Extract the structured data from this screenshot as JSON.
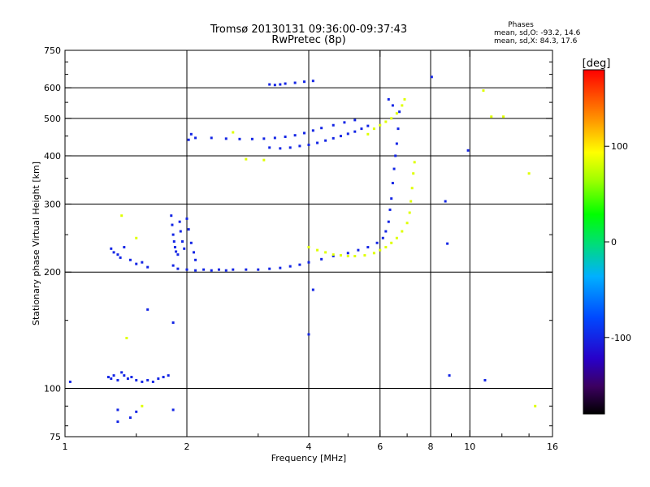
{
  "chart_data": {
    "type": "scatter",
    "title": "Tromsø 20130131 09:36:00-09:37:43",
    "subtitle": "RwPretec (8p)",
    "xlabel": "Frequency [MHz]",
    "ylabel": "Stationary phase Virtual Height [km]",
    "x_scale": "log",
    "y_scale": "log",
    "xlim": [
      1,
      16
    ],
    "ylim": [
      75,
      750
    ],
    "x_ticks": [
      "1",
      "2",
      "4",
      "6",
      "8",
      "10",
      "16"
    ],
    "x_tick_values": [
      1,
      2,
      4,
      6,
      8,
      10,
      16
    ],
    "x_grid": [
      2,
      4,
      6,
      8,
      10
    ],
    "y_ticks": [
      "750",
      "600",
      "500",
      "400",
      "300",
      "200",
      "100",
      "75"
    ],
    "y_tick_values": [
      750,
      600,
      500,
      400,
      300,
      200,
      100,
      75
    ],
    "y_grid": [
      600,
      500,
      400,
      300,
      200,
      100
    ],
    "grid": true,
    "stats": {
      "heading": "Phases",
      "line1": "mean, sd,O: -93.2, 14.6",
      "line2": "mean, sd,X:  84.3, 17.6"
    },
    "colorbar": {
      "label": "[deg]",
      "range": [
        -180,
        180
      ],
      "ticks": [
        "100",
        "0",
        "-100"
      ],
      "tick_values": [
        100,
        0,
        -100
      ]
    },
    "series": [
      {
        "name": "O",
        "color_phase": -100,
        "points": [
          [
            1.03,
            104
          ],
          [
            1.28,
            107
          ],
          [
            1.3,
            106
          ],
          [
            1.32,
            108
          ],
          [
            1.35,
            105
          ],
          [
            1.38,
            110
          ],
          [
            1.4,
            108
          ],
          [
            1.43,
            106
          ],
          [
            1.46,
            107
          ],
          [
            1.5,
            105
          ],
          [
            1.55,
            104
          ],
          [
            1.6,
            105
          ],
          [
            1.65,
            104
          ],
          [
            1.7,
            106
          ],
          [
            1.75,
            107
          ],
          [
            1.8,
            108
          ],
          [
            1.3,
            230
          ],
          [
            1.32,
            225
          ],
          [
            1.35,
            222
          ],
          [
            1.37,
            218
          ],
          [
            1.4,
            232
          ],
          [
            1.45,
            215
          ],
          [
            1.5,
            210
          ],
          [
            1.55,
            212
          ],
          [
            1.6,
            206
          ],
          [
            1.83,
            280
          ],
          [
            1.84,
            265
          ],
          [
            1.85,
            250
          ],
          [
            1.86,
            240
          ],
          [
            1.87,
            232
          ],
          [
            1.88,
            226
          ],
          [
            1.9,
            222
          ],
          [
            1.92,
            270
          ],
          [
            1.93,
            255
          ],
          [
            1.95,
            240
          ],
          [
            1.97,
            230
          ],
          [
            2.0,
            275
          ],
          [
            2.02,
            258
          ],
          [
            2.05,
            238
          ],
          [
            2.08,
            225
          ],
          [
            2.1,
            215
          ],
          [
            1.85,
            208
          ],
          [
            1.9,
            204
          ],
          [
            2.0,
            203
          ],
          [
            2.1,
            202
          ],
          [
            2.2,
            203
          ],
          [
            2.3,
            202
          ],
          [
            2.4,
            203
          ],
          [
            2.5,
            202
          ],
          [
            2.6,
            203
          ],
          [
            2.8,
            203
          ],
          [
            3.0,
            203
          ],
          [
            3.2,
            204
          ],
          [
            3.4,
            205
          ],
          [
            3.6,
            207
          ],
          [
            3.8,
            209
          ],
          [
            4.0,
            212
          ],
          [
            4.3,
            216
          ],
          [
            4.6,
            220
          ],
          [
            5.0,
            224
          ],
          [
            5.3,
            228
          ],
          [
            5.6,
            232
          ],
          [
            5.9,
            238
          ],
          [
            6.1,
            245
          ],
          [
            6.2,
            255
          ],
          [
            6.3,
            270
          ],
          [
            6.35,
            290
          ],
          [
            6.4,
            310
          ],
          [
            6.45,
            340
          ],
          [
            6.5,
            370
          ],
          [
            6.55,
            400
          ],
          [
            6.6,
            430
          ],
          [
            6.65,
            470
          ],
          [
            6.7,
            520
          ],
          [
            6.3,
            560
          ],
          [
            6.45,
            540
          ],
          [
            2.02,
            440
          ],
          [
            2.05,
            455
          ],
          [
            2.1,
            445
          ],
          [
            2.3,
            445
          ],
          [
            2.5,
            443
          ],
          [
            2.7,
            442
          ],
          [
            2.9,
            442
          ],
          [
            3.1,
            443
          ],
          [
            3.3,
            445
          ],
          [
            3.5,
            448
          ],
          [
            3.7,
            452
          ],
          [
            3.9,
            458
          ],
          [
            4.1,
            465
          ],
          [
            4.3,
            472
          ],
          [
            4.6,
            480
          ],
          [
            4.9,
            488
          ],
          [
            5.2,
            495
          ],
          [
            3.2,
            420
          ],
          [
            3.4,
            418
          ],
          [
            3.6,
            420
          ],
          [
            3.8,
            424
          ],
          [
            4.0,
            427
          ],
          [
            4.2,
            432
          ],
          [
            4.4,
            438
          ],
          [
            4.6,
            444
          ],
          [
            4.8,
            450
          ],
          [
            5.0,
            456
          ],
          [
            5.2,
            462
          ],
          [
            5.4,
            470
          ],
          [
            5.6,
            478
          ],
          [
            3.2,
            612
          ],
          [
            3.3,
            610
          ],
          [
            3.4,
            612
          ],
          [
            3.5,
            615
          ],
          [
            3.7,
            618
          ],
          [
            3.9,
            622
          ],
          [
            4.1,
            625
          ],
          [
            1.35,
            88
          ],
          [
            1.5,
            87
          ],
          [
            1.85,
            88
          ],
          [
            1.35,
            82
          ],
          [
            1.45,
            84
          ],
          [
            1.85,
            148
          ],
          [
            1.6,
            160
          ],
          [
            4.1,
            180
          ],
          [
            4.0,
            138
          ],
          [
            8.9,
            108
          ],
          [
            10.9,
            105
          ],
          [
            8.7,
            305
          ],
          [
            8.8,
            237
          ],
          [
            8.05,
            640
          ],
          [
            9.9,
            413
          ]
        ]
      },
      {
        "name": "X",
        "color_phase": 84,
        "points": [
          [
            4.0,
            232
          ],
          [
            4.2,
            228
          ],
          [
            4.4,
            225
          ],
          [
            4.6,
            222
          ],
          [
            4.8,
            221
          ],
          [
            5.0,
            220
          ],
          [
            5.2,
            220
          ],
          [
            5.5,
            221
          ],
          [
            5.8,
            224
          ],
          [
            6.0,
            228
          ],
          [
            6.2,
            232
          ],
          [
            6.4,
            238
          ],
          [
            6.6,
            245
          ],
          [
            6.8,
            255
          ],
          [
            7.0,
            268
          ],
          [
            7.1,
            285
          ],
          [
            7.15,
            305
          ],
          [
            7.2,
            330
          ],
          [
            7.25,
            360
          ],
          [
            7.3,
            385
          ],
          [
            5.6,
            455
          ],
          [
            5.8,
            470
          ],
          [
            6.0,
            480
          ],
          [
            6.2,
            490
          ],
          [
            6.4,
            500
          ],
          [
            6.6,
            515
          ],
          [
            6.8,
            540
          ],
          [
            6.9,
            560
          ],
          [
            1.38,
            280
          ],
          [
            1.42,
            135
          ],
          [
            1.55,
            90
          ],
          [
            1.5,
            245
          ],
          [
            2.6,
            460
          ],
          [
            2.8,
            392
          ],
          [
            3.1,
            390
          ],
          [
            10.8,
            590
          ],
          [
            11.3,
            505
          ],
          [
            14.0,
            360
          ],
          [
            14.5,
            90
          ],
          [
            12.1,
            505
          ]
        ]
      }
    ]
  }
}
